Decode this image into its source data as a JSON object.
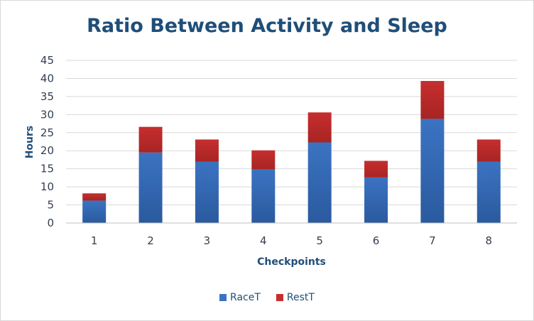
{
  "chart_data": {
    "type": "bar",
    "stacked": true,
    "title": "Ratio Between Activity and Sleep",
    "xlabel": "Checkpoints",
    "ylabel": "Hours",
    "categories": [
      "1",
      "2",
      "3",
      "4",
      "5",
      "6",
      "7",
      "8"
    ],
    "series": [
      {
        "name": "RaceT",
        "color": "#3b73c2",
        "values": [
          6.2,
          19.5,
          17.0,
          14.8,
          22.3,
          12.6,
          28.8,
          17.0
        ]
      },
      {
        "name": "RestT",
        "color": "#c62e2e",
        "values": [
          2.0,
          7.1,
          6.1,
          5.3,
          8.3,
          4.6,
          10.5,
          6.1
        ]
      }
    ],
    "ylim": [
      0,
      45
    ],
    "yticks": [
      0,
      5,
      10,
      15,
      20,
      25,
      30,
      35,
      40,
      45
    ],
    "grid": true,
    "legend": "bottom"
  }
}
